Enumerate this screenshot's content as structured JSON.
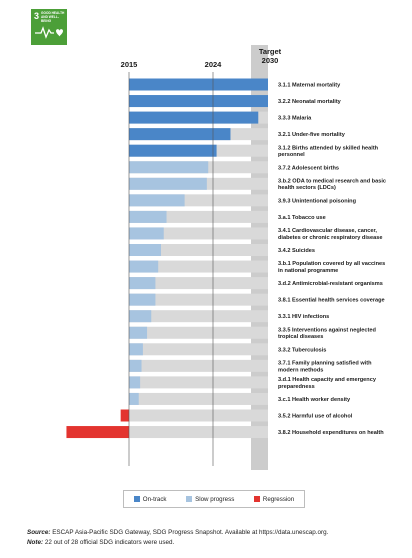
{
  "goal_badge": {
    "number": "3",
    "title": "GOOD HEALTH AND WELL-BEING",
    "icon": "heartbeat-icon"
  },
  "colors": {
    "on_track": "#4a86c8",
    "slow_progress": "#a7c4e0",
    "regression": "#e3342f",
    "track": "#d9d9d9",
    "target_col": "#cccccc"
  },
  "chart_data": {
    "type": "bar",
    "orientation": "horizontal",
    "axis_labels": {
      "start": "2015",
      "current": "2024",
      "target_line1": "Target",
      "target_line2": "2030"
    },
    "xlim": [
      -0.45,
      1.0
    ],
    "reference_lines": [
      {
        "label": "2024",
        "value": 0.6
      }
    ],
    "series": [
      {
        "name": "On-track",
        "status": "on-track"
      },
      {
        "name": "Slow progress",
        "status": "slow"
      },
      {
        "name": "Regression",
        "status": "regression"
      }
    ],
    "indicators": [
      {
        "label": [
          "3.1.1 Maternal mortality"
        ],
        "value": 1.0,
        "status": "on-track"
      },
      {
        "label": [
          "3.2.2 Neonatal mortality"
        ],
        "value": 1.0,
        "status": "on-track"
      },
      {
        "label": [
          "3.3.3 Malaria"
        ],
        "value": 0.93,
        "status": "on-track"
      },
      {
        "label": [
          "3.2.1 Under-five mortality"
        ],
        "value": 0.73,
        "status": "on-track"
      },
      {
        "label": [
          "3.1.2 Births attended by skilled health",
          "personnel"
        ],
        "value": 0.63,
        "status": "on-track"
      },
      {
        "label": [
          "3.7.2 Adolescent births"
        ],
        "value": 0.57,
        "status": "slow"
      },
      {
        "label": [
          "3.b.2 ODA to medical research and basic",
          "health sectors (LDCs)"
        ],
        "value": 0.56,
        "status": "slow"
      },
      {
        "label": [
          "3.9.3 Unintentional poisoning"
        ],
        "value": 0.4,
        "status": "slow"
      },
      {
        "label": [
          "3.a.1 Tobacco use"
        ],
        "value": 0.27,
        "status": "slow"
      },
      {
        "label": [
          "3.4.1 Cardiovascular disease, cancer,",
          "diabetes or chronic respiratory disease"
        ],
        "value": 0.25,
        "status": "slow"
      },
      {
        "label": [
          "3.4.2 Suicides"
        ],
        "value": 0.23,
        "status": "slow"
      },
      {
        "label": [
          "3.b.1 Population covered by all vaccines",
          "in national programme"
        ],
        "value": 0.21,
        "status": "slow"
      },
      {
        "label": [
          "3.d.2 Antimicrobial-resistant organisms"
        ],
        "value": 0.19,
        "status": "slow"
      },
      {
        "label": [
          "3.8.1 Essential health services coverage"
        ],
        "value": 0.19,
        "status": "slow"
      },
      {
        "label": [
          "3.3.1 HIV infections"
        ],
        "value": 0.16,
        "status": "slow"
      },
      {
        "label": [
          "3.3.5 Interventions against neglected",
          "tropical diseases"
        ],
        "value": 0.13,
        "status": "slow"
      },
      {
        "label": [
          "3.3.2 Tuberculosis"
        ],
        "value": 0.1,
        "status": "slow"
      },
      {
        "label": [
          "3.7.1 Family planning satisfied with",
          "modern methods"
        ],
        "value": 0.09,
        "status": "slow"
      },
      {
        "label": [
          "3.d.1 Health capacity and emergency",
          "preparedness"
        ],
        "value": 0.08,
        "status": "slow"
      },
      {
        "label": [
          "3.c.1 Health worker density"
        ],
        "value": 0.07,
        "status": "slow"
      },
      {
        "label": [
          "3.5.2 Harmful use of alcohol"
        ],
        "value": -0.06,
        "status": "regression"
      },
      {
        "label": [
          "3.8.2 Household expenditures on health"
        ],
        "value": -0.45,
        "status": "regression"
      }
    ]
  },
  "legend": {
    "on_track": "On-track",
    "slow_progress": "Slow progress",
    "regression": "Regression"
  },
  "footnote": {
    "source_label": "Source:",
    "source_text": " ESCAP Asia-Pacific SDG Gateway, SDG Progress Snapshot. Available at https://data.unescap.org.",
    "note_label": "Note:",
    "note_text": " 22 out of 28 official SDG indicators were used."
  }
}
